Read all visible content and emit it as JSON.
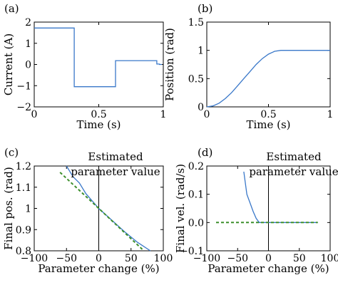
{
  "chart_data": [
    {
      "panel_label": "(a)",
      "type": "line",
      "xlabel": "Time (s)",
      "ylabel": "Current (A)",
      "xlim": [
        0,
        1
      ],
      "ylim": [
        -2,
        2
      ],
      "xticks": [
        0,
        0.5,
        1
      ],
      "yticks": [
        -2,
        -1,
        0,
        1,
        2
      ],
      "xtick_labels": [
        "0",
        "0.5",
        "1"
      ],
      "ytick_labels": [
        "−2",
        "−1",
        "0",
        "1",
        "2"
      ],
      "grid": false,
      "series": [
        {
          "color": "#3a78c9",
          "x": [
            0,
            0.31,
            0.31,
            0.63,
            0.63,
            0.95,
            0.95,
            0.97,
            0.97,
            0.99
          ],
          "y": [
            1.72,
            1.72,
            -1.05,
            -1.05,
            0.18,
            0.18,
            0.02,
            0.02,
            0.0,
            0.0
          ]
        }
      ]
    },
    {
      "panel_label": "(b)",
      "type": "line",
      "xlabel": "Time (s)",
      "ylabel": "Position (rad)",
      "xlim": [
        0,
        1
      ],
      "ylim": [
        0,
        1.5
      ],
      "xticks": [
        0,
        0.5,
        1
      ],
      "yticks": [
        0,
        0.5,
        1,
        1.5
      ],
      "xtick_labels": [
        "0",
        "0.5",
        "1"
      ],
      "ytick_labels": [
        "0",
        "0.5",
        "1",
        "1.5"
      ],
      "grid": false,
      "series": [
        {
          "color": "#3a78c9",
          "x": [
            0,
            0.05,
            0.1,
            0.15,
            0.2,
            0.25,
            0.3,
            0.35,
            0.4,
            0.45,
            0.5,
            0.55,
            0.6,
            0.65,
            0.7,
            0.8,
            0.9,
            1.0
          ],
          "y": [
            0,
            0.017,
            0.066,
            0.146,
            0.25,
            0.375,
            0.5,
            0.625,
            0.75,
            0.854,
            0.933,
            0.983,
            1.0,
            1.0,
            1.0,
            1.0,
            1.0,
            1.0
          ]
        }
      ]
    },
    {
      "panel_label": "(c)",
      "type": "line",
      "xlabel": "Parameter change (%)",
      "ylabel": "Final pos. (rad)",
      "annotation": [
        "Estimated",
        "parameter value"
      ],
      "xlim": [
        -100,
        100
      ],
      "ylim": [
        0.8,
        1.2
      ],
      "xticks": [
        -100,
        -50,
        0,
        50,
        100
      ],
      "yticks": [
        0.8,
        0.9,
        1.0,
        1.1,
        1.2
      ],
      "xtick_labels": [
        "−100",
        "−50",
        "0",
        "50",
        "100"
      ],
      "ytick_labels": [
        "0.8",
        "0.9",
        "1",
        "1.1",
        "1.2"
      ],
      "vline_x": 0,
      "grid": false,
      "series": [
        {
          "color": "#3a78c9",
          "dash": "solid",
          "x": [
            -50,
            -40,
            -30,
            -20,
            -10,
            0,
            20,
            40,
            60,
            80
          ],
          "y": [
            1.2,
            1.15,
            1.12,
            1.07,
            1.035,
            1.0,
            0.945,
            0.89,
            0.84,
            0.8
          ]
        },
        {
          "color": "#3d8f2c",
          "dash": "dashed",
          "x": [
            -60,
            0,
            70
          ],
          "y": [
            1.17,
            1.0,
            0.8
          ]
        }
      ]
    },
    {
      "panel_label": "(d)",
      "type": "line",
      "xlabel": "Parameter change (%)",
      "ylabel": "Final vel. (rad/s)",
      "annotation": [
        "Estimated",
        "parameter value"
      ],
      "xlim": [
        -100,
        100
      ],
      "ylim": [
        -0.1,
        0.2
      ],
      "xticks": [
        -100,
        -50,
        0,
        50,
        100
      ],
      "yticks": [
        -0.1,
        0.0,
        0.1,
        0.2
      ],
      "xtick_labels": [
        "−100",
        "−50",
        "0",
        "50",
        "100"
      ],
      "ytick_labels": [
        "−0.1",
        "0.0",
        "0.1",
        "0.2"
      ],
      "vline_x": 0,
      "grid": false,
      "series": [
        {
          "color": "#3a78c9",
          "dash": "solid",
          "x": [
            -40,
            -35,
            -30,
            -25,
            -20,
            -15,
            0,
            20,
            40,
            60,
            80
          ],
          "y": [
            0.18,
            0.1,
            0.07,
            0.04,
            0.015,
            0.0,
            0.0,
            0.0,
            0.0,
            0.0,
            0.0
          ]
        },
        {
          "color": "#3d8f2c",
          "dash": "dashed",
          "x": [
            -85,
            80
          ],
          "y": [
            0.0,
            0.0
          ]
        }
      ]
    }
  ]
}
